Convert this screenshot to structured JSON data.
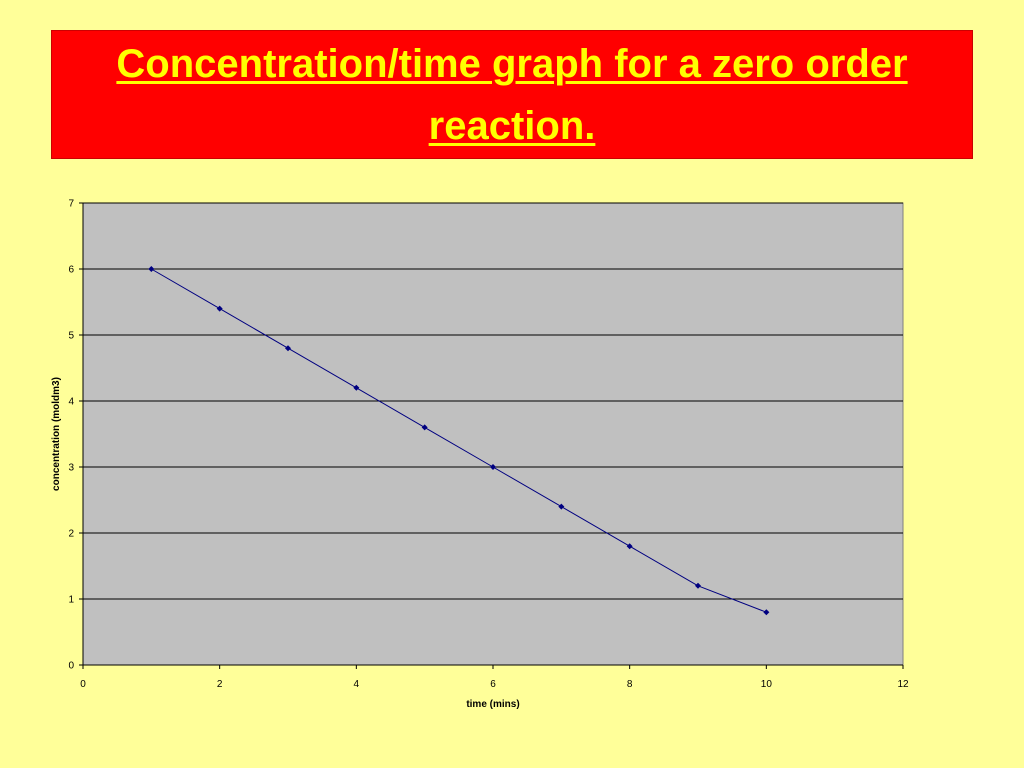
{
  "slide": {
    "title": "Concentration/time graph for a zero order reaction."
  },
  "colors": {
    "background": "#ffff99",
    "title_box": "#ff0000",
    "title_text": "#ffff00",
    "plot_area": "#c0c0c0",
    "series": "#000080"
  },
  "chart_data": {
    "type": "line",
    "xlabel": "time (mins)",
    "ylabel": "concentration (moldm3)",
    "xlim": [
      0,
      12
    ],
    "ylim": [
      0,
      7
    ],
    "xticks": [
      0,
      2,
      4,
      6,
      8,
      10,
      12
    ],
    "yticks": [
      0,
      1,
      2,
      3,
      4,
      5,
      6,
      7
    ],
    "grid": "horizontal",
    "legend": "none",
    "series": [
      {
        "x": [
          1,
          2,
          3,
          4,
          5,
          6,
          7,
          8,
          9,
          10
        ],
        "y": [
          6,
          5.4,
          4.8,
          4.2,
          3.6,
          3,
          2.4,
          1.8,
          1.2,
          0.8
        ],
        "marker": "diamond"
      }
    ]
  }
}
